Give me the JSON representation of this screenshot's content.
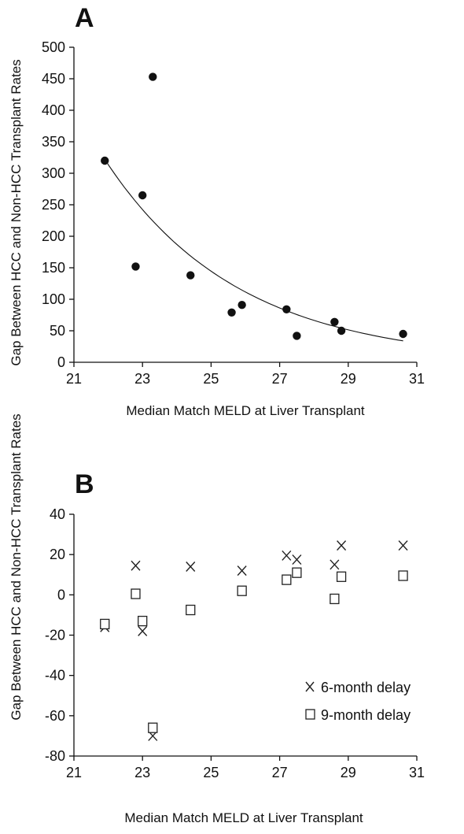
{
  "chart_data": [
    {
      "panel": "A",
      "type": "scatter",
      "xlabel": "Median Match MELD at Liver Transplant",
      "ylabel": "Gap Between HCC and Non-HCC Transplant Rates",
      "xlim": [
        21,
        31
      ],
      "ylim": [
        0,
        500
      ],
      "xticks": [
        21,
        23,
        25,
        27,
        29,
        31
      ],
      "yticks": [
        0,
        50,
        100,
        150,
        200,
        250,
        300,
        350,
        400,
        450,
        500
      ],
      "series": [
        {
          "points": [
            {
              "x": 21.9,
              "y": 320
            },
            {
              "x": 23.0,
              "y": 265
            },
            {
              "x": 23.3,
              "y": 453
            },
            {
              "x": 22.8,
              "y": 152
            },
            {
              "x": 24.4,
              "y": 138
            },
            {
              "x": 25.6,
              "y": 79
            },
            {
              "x": 25.9,
              "y": 91
            },
            {
              "x": 27.2,
              "y": 84
            },
            {
              "x": 27.5,
              "y": 42
            },
            {
              "x": 28.6,
              "y": 64
            },
            {
              "x": 28.8,
              "y": 50
            },
            {
              "x": 30.6,
              "y": 45
            }
          ]
        }
      ],
      "trendline": {
        "type": "exponential",
        "x_range": [
          21.9,
          30.6
        ],
        "y_at_start": 322,
        "y_at_end": 34
      },
      "grid": false
    },
    {
      "panel": "B",
      "type": "scatter",
      "xlabel": "Median Match MELD at Liver Transplant",
      "ylabel": "Gap Between HCC and Non-HCC Transplant Rates",
      "xlim": [
        21,
        31
      ],
      "ylim": [
        -80,
        40
      ],
      "xticks": [
        21,
        23,
        25,
        27,
        29,
        31
      ],
      "yticks": [
        -80,
        -60,
        -40,
        -20,
        0,
        20,
        40
      ],
      "series": [
        {
          "name": "6-month delay",
          "marker": "x",
          "points": [
            {
              "x": 21.9,
              "y": -16
            },
            {
              "x": 22.8,
              "y": 14.5
            },
            {
              "x": 23.0,
              "y": -18
            },
            {
              "x": 23.3,
              "y": -70
            },
            {
              "x": 24.4,
              "y": 14
            },
            {
              "x": 25.9,
              "y": 12
            },
            {
              "x": 27.2,
              "y": 19.5
            },
            {
              "x": 27.5,
              "y": 17.5
            },
            {
              "x": 28.6,
              "y": 15
            },
            {
              "x": 28.8,
              "y": 24.5
            },
            {
              "x": 30.6,
              "y": 24.5
            }
          ]
        },
        {
          "name": "9-month delay",
          "marker": "square",
          "points": [
            {
              "x": 21.9,
              "y": -14.5
            },
            {
              "x": 22.8,
              "y": 0.5
            },
            {
              "x": 23.0,
              "y": -13
            },
            {
              "x": 23.3,
              "y": -66
            },
            {
              "x": 24.4,
              "y": -7.5
            },
            {
              "x": 25.9,
              "y": 2
            },
            {
              "x": 27.2,
              "y": 7.5
            },
            {
              "x": 27.5,
              "y": 11
            },
            {
              "x": 28.6,
              "y": -2
            },
            {
              "x": 28.8,
              "y": 9
            },
            {
              "x": 30.6,
              "y": 9.5
            }
          ]
        }
      ],
      "legend": "bottom-right",
      "grid": false
    }
  ]
}
